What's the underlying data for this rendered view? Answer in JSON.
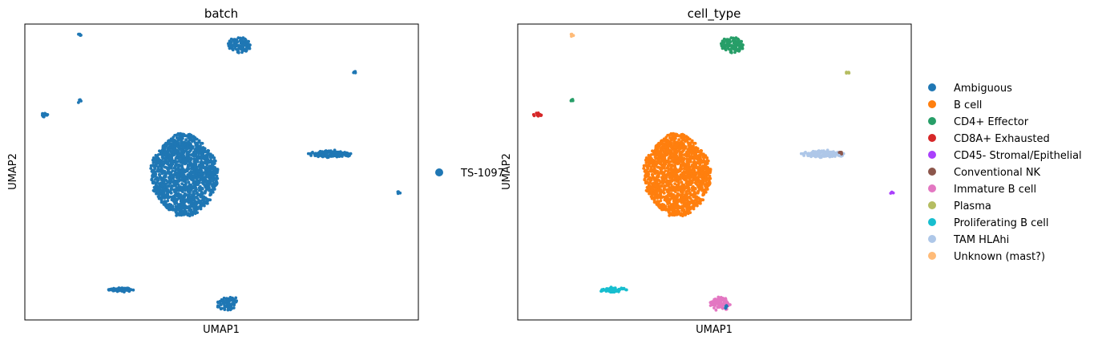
{
  "chart_data": [
    {
      "type": "scatter",
      "title": "batch",
      "xlabel": "UMAP1",
      "ylabel": "UMAP2",
      "x_ticks": false,
      "y_ticks": false,
      "xlim": [
        0,
        10
      ],
      "ylim": [
        0,
        10
      ],
      "legend": {
        "placement": "right",
        "entries": [
          {
            "label": "TS-1097",
            "color": "#1f77b4"
          }
        ]
      },
      "clusters": [
        {
          "label": "TS-1097",
          "color": "#1f77b4",
          "cx": 4.05,
          "cy": 4.9,
          "rx": 0.85,
          "ry": 1.4,
          "shape": "diamond",
          "n": 1500
        },
        {
          "label": "TS-1097",
          "color": "#1f77b4",
          "cx": 5.45,
          "cy": 9.3,
          "rx": 0.3,
          "ry": 0.25,
          "shape": "blob",
          "n": 120
        },
        {
          "label": "TS-1097",
          "color": "#1f77b4",
          "cx": 7.75,
          "cy": 5.6,
          "rx": 0.55,
          "ry": 0.1,
          "shape": "blob",
          "n": 150
        },
        {
          "label": "TS-1097",
          "color": "#1f77b4",
          "cx": 5.15,
          "cy": 0.55,
          "rx": 0.28,
          "ry": 0.22,
          "shape": "blob",
          "n": 70
        },
        {
          "label": "TS-1097",
          "color": "#1f77b4",
          "cx": 2.45,
          "cy": 1.02,
          "rx": 0.35,
          "ry": 0.06,
          "shape": "blob",
          "n": 60
        },
        {
          "label": "TS-1097",
          "color": "#1f77b4",
          "cx": 0.5,
          "cy": 6.93,
          "rx": 0.1,
          "ry": 0.07,
          "shape": "blob",
          "n": 12
        },
        {
          "label": "TS-1097",
          "color": "#1f77b4",
          "cx": 1.38,
          "cy": 7.4,
          "rx": 0.04,
          "ry": 0.04,
          "shape": "blob",
          "n": 4
        },
        {
          "label": "TS-1097",
          "color": "#1f77b4",
          "cx": 1.38,
          "cy": 9.62,
          "rx": 0.04,
          "ry": 0.04,
          "shape": "blob",
          "n": 4
        },
        {
          "label": "TS-1097",
          "color": "#1f77b4",
          "cx": 8.38,
          "cy": 8.35,
          "rx": 0.04,
          "ry": 0.03,
          "shape": "blob",
          "n": 4
        },
        {
          "label": "TS-1097",
          "color": "#1f77b4",
          "cx": 9.5,
          "cy": 4.3,
          "rx": 0.04,
          "ry": 0.03,
          "shape": "blob",
          "n": 4
        }
      ]
    },
    {
      "type": "scatter",
      "title": "cell_type",
      "xlabel": "UMAP1",
      "ylabel": "UMAP2",
      "x_ticks": false,
      "y_ticks": false,
      "xlim": [
        0,
        10
      ],
      "ylim": [
        0,
        10
      ],
      "legend": {
        "placement": "right",
        "entries": [
          {
            "label": "Ambiguous",
            "color": "#1f77b4"
          },
          {
            "label": "B cell",
            "color": "#ff7f0e"
          },
          {
            "label": "CD4+ Effector",
            "color": "#279e68"
          },
          {
            "label": "CD8A+ Exhausted",
            "color": "#d62728"
          },
          {
            "label": "CD45- Stromal/Epithelial",
            "color": "#aa40fc"
          },
          {
            "label": "Conventional NK",
            "color": "#8c564b"
          },
          {
            "label": "Immature B cell",
            "color": "#e377c2"
          },
          {
            "label": "Plasma",
            "color": "#b5bd61"
          },
          {
            "label": "Proliferating B cell",
            "color": "#17becf"
          },
          {
            "label": "TAM HLAhi",
            "color": "#aec7e8"
          },
          {
            "label": "Unknown (mast?)",
            "color": "#ffbb78"
          }
        ]
      },
      "clusters": [
        {
          "label": "B cell",
          "color": "#ff7f0e",
          "cx": 4.05,
          "cy": 4.9,
          "rx": 0.85,
          "ry": 1.4,
          "shape": "diamond",
          "n": 1500
        },
        {
          "label": "CD4+ Effector",
          "color": "#279e68",
          "cx": 5.45,
          "cy": 9.3,
          "rx": 0.3,
          "ry": 0.25,
          "shape": "blob",
          "n": 120
        },
        {
          "label": "TAM HLAhi",
          "color": "#aec7e8",
          "cx": 7.75,
          "cy": 5.6,
          "rx": 0.55,
          "ry": 0.1,
          "shape": "blob",
          "n": 150
        },
        {
          "label": "Conventional NK",
          "color": "#8c564b",
          "cx": 8.2,
          "cy": 5.65,
          "rx": 0.05,
          "ry": 0.04,
          "shape": "blob",
          "n": 6
        },
        {
          "label": "Immature B cell",
          "color": "#e377c2",
          "cx": 5.15,
          "cy": 0.55,
          "rx": 0.28,
          "ry": 0.22,
          "shape": "blob",
          "n": 70
        },
        {
          "label": "Ambiguous",
          "color": "#1f77b4",
          "cx": 5.3,
          "cy": 0.45,
          "rx": 0.06,
          "ry": 0.05,
          "shape": "blob",
          "n": 5
        },
        {
          "label": "Proliferating B cell",
          "color": "#17becf",
          "cx": 2.45,
          "cy": 1.02,
          "rx": 0.35,
          "ry": 0.06,
          "shape": "blob",
          "n": 60
        },
        {
          "label": "CD8A+ Exhausted",
          "color": "#d62728",
          "cx": 0.5,
          "cy": 6.93,
          "rx": 0.1,
          "ry": 0.07,
          "shape": "blob",
          "n": 12
        },
        {
          "label": "CD4+ Effector",
          "color": "#279e68",
          "cx": 1.38,
          "cy": 7.4,
          "rx": 0.04,
          "ry": 0.04,
          "shape": "blob",
          "n": 4
        },
        {
          "label": "Unknown (mast?)",
          "color": "#ffbb78",
          "cx": 1.38,
          "cy": 9.62,
          "rx": 0.04,
          "ry": 0.04,
          "shape": "blob",
          "n": 4
        },
        {
          "label": "Plasma",
          "color": "#b5bd61",
          "cx": 8.38,
          "cy": 8.35,
          "rx": 0.04,
          "ry": 0.03,
          "shape": "blob",
          "n": 4
        },
        {
          "label": "CD45- Stromal/Epithelial",
          "color": "#aa40fc",
          "cx": 9.5,
          "cy": 4.3,
          "rx": 0.04,
          "ry": 0.03,
          "shape": "blob",
          "n": 4
        }
      ]
    }
  ]
}
